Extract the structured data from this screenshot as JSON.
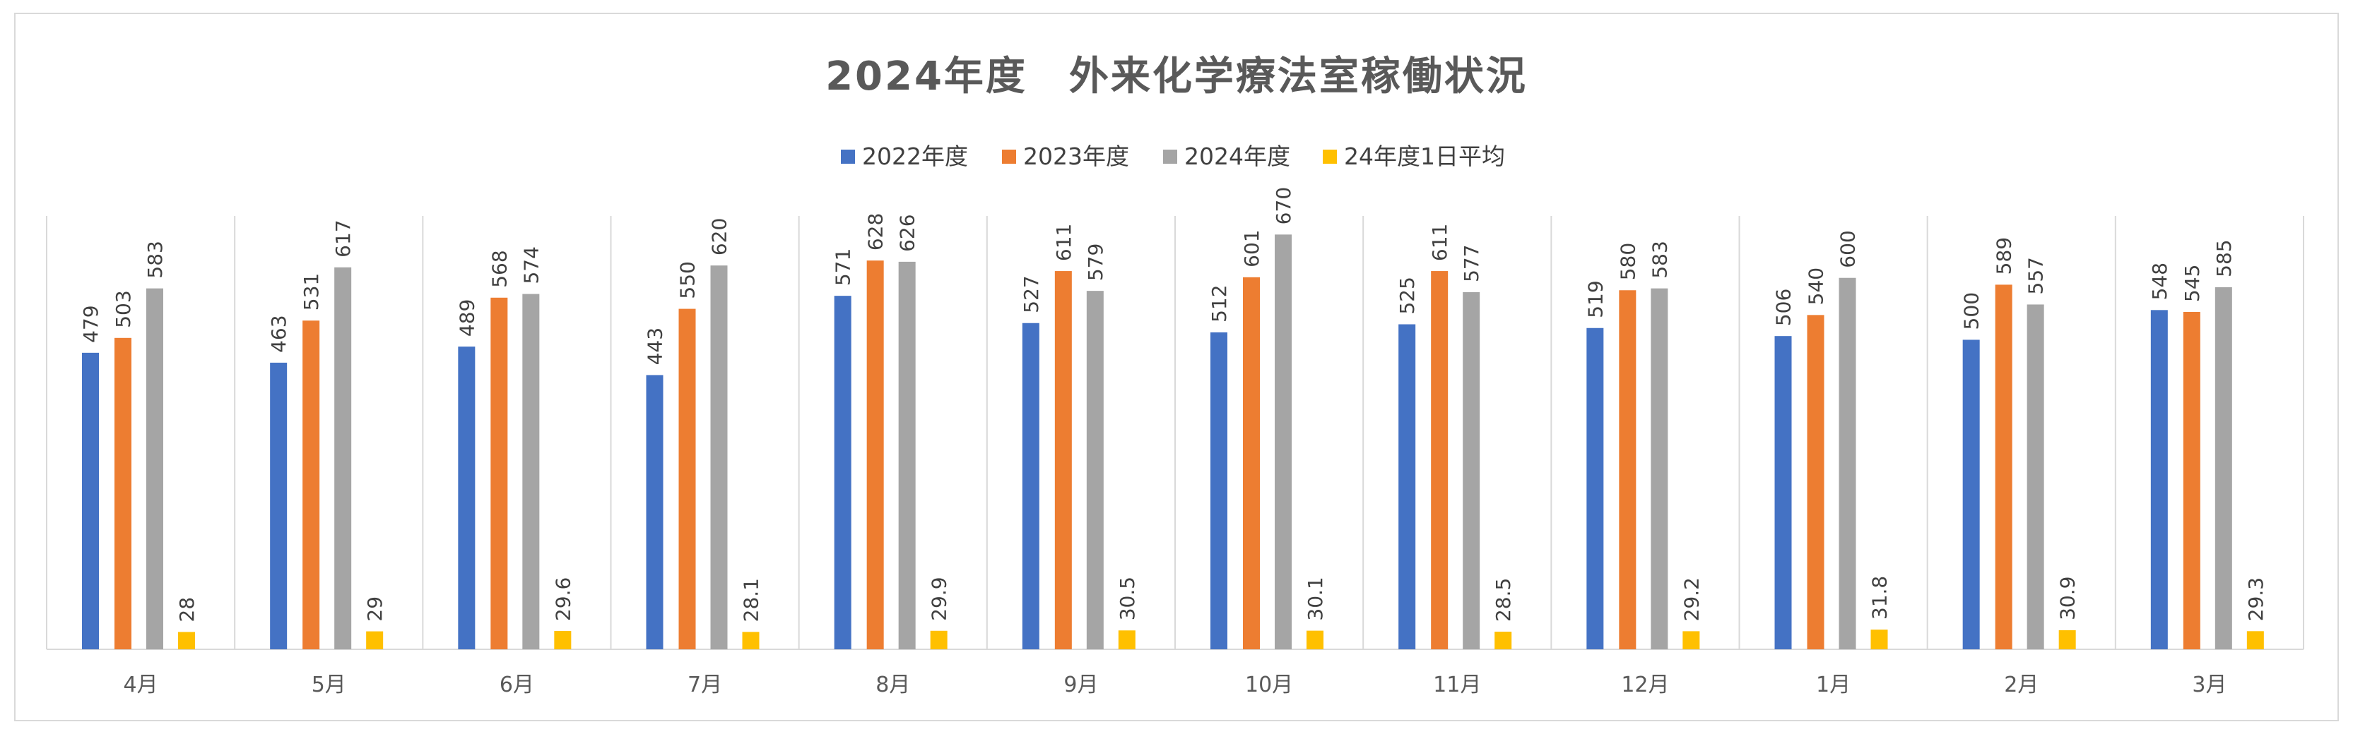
{
  "chart_data": {
    "type": "bar",
    "title": "2024年度　外来化学療法室稼働状況",
    "xlabel": "",
    "ylabel": "",
    "ylim": [
      0,
      700
    ],
    "grid": "vertical-category-separators",
    "legend_position": "top",
    "categories": [
      "4月",
      "5月",
      "6月",
      "7月",
      "8月",
      "9月",
      "10月",
      "11月",
      "12月",
      "1月",
      "2月",
      "3月"
    ],
    "series": [
      {
        "name": "2022年度",
        "color": "#4472c4",
        "values": [
          479,
          463,
          489,
          443,
          571,
          527,
          512,
          525,
          519,
          506,
          500,
          548
        ],
        "labels": [
          "479",
          "463",
          "489",
          "443",
          "571",
          "527",
          "512",
          "525",
          "519",
          "506",
          "500",
          "548"
        ]
      },
      {
        "name": "2023年度",
        "color": "#ed7d31",
        "values": [
          503,
          531,
          568,
          550,
          628,
          611,
          601,
          611,
          580,
          540,
          589,
          545
        ],
        "labels": [
          "503",
          "531",
          "568",
          "550",
          "628",
          "611",
          "601",
          "611",
          "580",
          "540",
          "589",
          "545"
        ]
      },
      {
        "name": "2024年度",
        "color": "#a5a5a5",
        "values": [
          583,
          617,
          574,
          620,
          626,
          579,
          670,
          577,
          583,
          600,
          557,
          585
        ],
        "labels": [
          "583",
          "617",
          "574",
          "620",
          "626",
          "579",
          "670",
          "577",
          "583",
          "600",
          "557",
          "585"
        ]
      },
      {
        "name": "24年度1日平均",
        "color": "#ffc000",
        "values": [
          28,
          29,
          29.6,
          28.1,
          29.9,
          30.5,
          30.1,
          28.5,
          29.2,
          31.8,
          30.9,
          29.3
        ],
        "labels": [
          "28",
          "29",
          "29.6",
          "28.1",
          "29.9",
          "30.5",
          "30.1",
          "28.5",
          "29.2",
          "31.8",
          "30.9",
          "29.3"
        ]
      }
    ]
  }
}
